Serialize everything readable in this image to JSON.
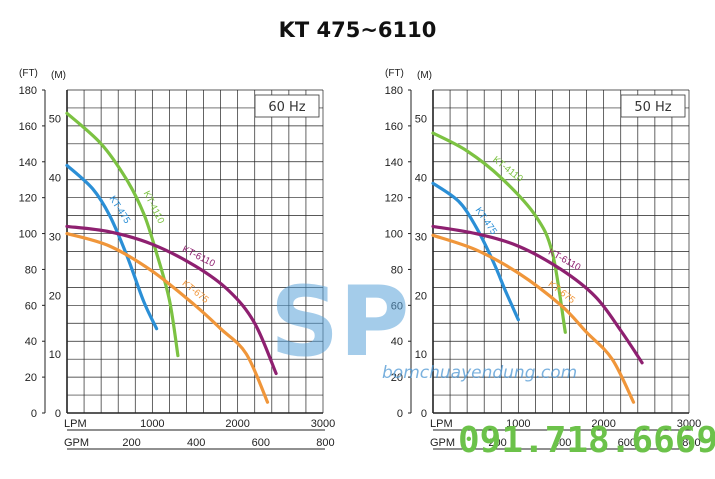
{
  "title": "KT 475~6110",
  "watermark": {
    "logo_text": "SP",
    "site": "bomchuayendung.com",
    "phone": "091.718.6669"
  },
  "colors": {
    "KT-475": "#2b8fd6",
    "KT-4110": "#7cc242",
    "KT-6110": "#8e2070",
    "KT-675": "#f0963a",
    "grid": "#222222"
  },
  "chart_data": [
    {
      "type": "line",
      "legend_box": "60 Hz",
      "ft_unit": "(FT)",
      "m_unit": "(M)",
      "ft_ticks": [
        "180",
        "160",
        "140",
        "120",
        "100",
        "80",
        "60",
        "40",
        "20",
        "0"
      ],
      "m_ticks": [
        "50",
        "40",
        "30",
        "20",
        "10",
        "0"
      ],
      "lpm_label": "LPM",
      "gpm_label": "GPM",
      "lpm_ticks": [
        "1000",
        "2000",
        "3000"
      ],
      "gpm_ticks": [
        "200",
        "400",
        "600",
        "800"
      ],
      "xlim_lpm": [
        0,
        3000
      ],
      "ylim_ft": [
        0,
        180
      ],
      "grid": true,
      "series": [
        {
          "name": "KT-475",
          "x": [
            0,
            300,
            500,
            700,
            900,
            1050
          ],
          "y": [
            138,
            125,
            110,
            88,
            62,
            47
          ]
        },
        {
          "name": "KT-4110",
          "x": [
            0,
            400,
            700,
            900,
            1050,
            1200,
            1300
          ],
          "y": [
            167,
            150,
            130,
            111,
            89,
            63,
            32
          ]
        },
        {
          "name": "KT-6110",
          "x": [
            0,
            500,
            1000,
            1500,
            1900,
            2200,
            2450
          ],
          "y": [
            104,
            101,
            94,
            82,
            68,
            50,
            22
          ]
        },
        {
          "name": "KT-675",
          "x": [
            0,
            500,
            1000,
            1500,
            1800,
            2100,
            2350
          ],
          "y": [
            100,
            93,
            79,
            60,
            47,
            33,
            6
          ]
        }
      ]
    },
    {
      "type": "line",
      "legend_box": "50 Hz",
      "ft_unit": "(FT)",
      "m_unit": "(M)",
      "ft_ticks": [
        "180",
        "160",
        "140",
        "120",
        "100",
        "80",
        "60",
        "40",
        "20",
        "0"
      ],
      "m_ticks": [
        "50",
        "40",
        "30",
        "20",
        "10",
        "0"
      ],
      "lpm_label": "LPM",
      "gpm_label": "GPM",
      "lpm_ticks": [
        "1000",
        "2000",
        "3000"
      ],
      "gpm_ticks": [
        "200",
        "400",
        "600",
        "800"
      ],
      "xlim_lpm": [
        0,
        3000
      ],
      "ylim_ft": [
        0,
        180
      ],
      "grid": true,
      "series": [
        {
          "name": "KT-475",
          "x": [
            0,
            300,
            500,
            700,
            850,
            1000
          ],
          "y": [
            128,
            118,
            104,
            85,
            68,
            52
          ]
        },
        {
          "name": "KT-4110",
          "x": [
            0,
            400,
            800,
            1200,
            1400,
            1550
          ],
          "y": [
            156,
            146,
            131,
            110,
            89,
            45
          ]
        },
        {
          "name": "KT-6110",
          "x": [
            0,
            500,
            1000,
            1500,
            1900,
            2200,
            2450
          ],
          "y": [
            104,
            100,
            93,
            80,
            65,
            46,
            28
          ]
        },
        {
          "name": "KT-675",
          "x": [
            0,
            500,
            1000,
            1500,
            1800,
            2100,
            2350
          ],
          "y": [
            99,
            91,
            78,
            60,
            45,
            30,
            6
          ]
        }
      ]
    }
  ]
}
